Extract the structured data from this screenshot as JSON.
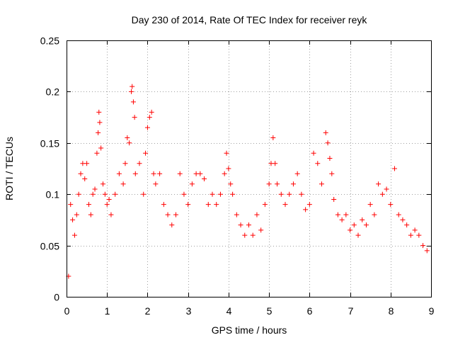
{
  "chart_data": {
    "type": "scatter",
    "title": "Day 230 of 2014, Rate Of TEC Index for receiver reyk",
    "xlabel": "GPS time / hours",
    "ylabel": "ROTI / TECUs",
    "xlim": [
      0,
      9
    ],
    "ylim": [
      0,
      0.25
    ],
    "x_ticks": [
      0,
      1,
      2,
      3,
      4,
      5,
      6,
      7,
      8,
      9
    ],
    "x_tick_labels": [
      "0",
      "1",
      "2",
      "3",
      "4",
      "5",
      "6",
      "7",
      "8",
      "9"
    ],
    "y_ticks": [
      0,
      0.05,
      0.1,
      0.15,
      0.2,
      0.25
    ],
    "y_tick_labels": [
      "0",
      "0.05",
      "0.1",
      "0.15",
      "0.2",
      "0.25"
    ],
    "grid": true,
    "marker": "+",
    "color": "#ff0000",
    "series": [
      {
        "name": "ROTI",
        "points": [
          [
            0.05,
            0.02
          ],
          [
            0.1,
            0.09
          ],
          [
            0.15,
            0.075
          ],
          [
            0.2,
            0.06
          ],
          [
            0.25,
            0.08
          ],
          [
            0.3,
            0.1
          ],
          [
            0.35,
            0.12
          ],
          [
            0.4,
            0.13
          ],
          [
            0.45,
            0.115
          ],
          [
            0.5,
            0.13
          ],
          [
            0.55,
            0.09
          ],
          [
            0.6,
            0.08
          ],
          [
            0.65,
            0.1
          ],
          [
            0.7,
            0.105
          ],
          [
            0.75,
            0.14
          ],
          [
            0.78,
            0.16
          ],
          [
            0.8,
            0.18
          ],
          [
            0.82,
            0.17
          ],
          [
            0.85,
            0.145
          ],
          [
            0.9,
            0.11
          ],
          [
            0.95,
            0.1
          ],
          [
            1.0,
            0.09
          ],
          [
            1.05,
            0.095
          ],
          [
            1.1,
            0.08
          ],
          [
            1.2,
            0.1
          ],
          [
            1.3,
            0.12
          ],
          [
            1.4,
            0.11
          ],
          [
            1.45,
            0.13
          ],
          [
            1.5,
            0.155
          ],
          [
            1.55,
            0.15
          ],
          [
            1.6,
            0.2
          ],
          [
            1.62,
            0.205
          ],
          [
            1.65,
            0.19
          ],
          [
            1.68,
            0.175
          ],
          [
            1.7,
            0.12
          ],
          [
            1.8,
            0.13
          ],
          [
            1.9,
            0.1
          ],
          [
            1.95,
            0.14
          ],
          [
            2.0,
            0.165
          ],
          [
            2.05,
            0.175
          ],
          [
            2.1,
            0.18
          ],
          [
            2.15,
            0.12
          ],
          [
            2.2,
            0.11
          ],
          [
            2.3,
            0.12
          ],
          [
            2.4,
            0.09
          ],
          [
            2.5,
            0.08
          ],
          [
            2.6,
            0.07
          ],
          [
            2.7,
            0.08
          ],
          [
            2.8,
            0.12
          ],
          [
            2.9,
            0.1
          ],
          [
            3.0,
            0.09
          ],
          [
            3.1,
            0.11
          ],
          [
            3.2,
            0.12
          ],
          [
            3.3,
            0.12
          ],
          [
            3.4,
            0.115
          ],
          [
            3.5,
            0.09
          ],
          [
            3.6,
            0.1
          ],
          [
            3.7,
            0.09
          ],
          [
            3.8,
            0.1
          ],
          [
            3.9,
            0.12
          ],
          [
            3.95,
            0.14
          ],
          [
            4.0,
            0.125
          ],
          [
            4.05,
            0.11
          ],
          [
            4.1,
            0.1
          ],
          [
            4.2,
            0.08
          ],
          [
            4.3,
            0.07
          ],
          [
            4.4,
            0.06
          ],
          [
            4.5,
            0.07
          ],
          [
            4.6,
            0.06
          ],
          [
            4.7,
            0.08
          ],
          [
            4.8,
            0.065
          ],
          [
            4.9,
            0.09
          ],
          [
            5.0,
            0.11
          ],
          [
            5.05,
            0.13
          ],
          [
            5.1,
            0.155
          ],
          [
            5.15,
            0.13
          ],
          [
            5.2,
            0.11
          ],
          [
            5.3,
            0.1
          ],
          [
            5.4,
            0.09
          ],
          [
            5.5,
            0.1
          ],
          [
            5.6,
            0.11
          ],
          [
            5.7,
            0.12
          ],
          [
            5.8,
            0.1
          ],
          [
            5.9,
            0.085
          ],
          [
            6.0,
            0.09
          ],
          [
            6.1,
            0.14
          ],
          [
            6.2,
            0.13
          ],
          [
            6.3,
            0.11
          ],
          [
            6.4,
            0.16
          ],
          [
            6.45,
            0.15
          ],
          [
            6.5,
            0.135
          ],
          [
            6.55,
            0.12
          ],
          [
            6.6,
            0.095
          ],
          [
            6.7,
            0.08
          ],
          [
            6.8,
            0.075
          ],
          [
            6.9,
            0.08
          ],
          [
            7.0,
            0.065
          ],
          [
            7.1,
            0.07
          ],
          [
            7.2,
            0.06
          ],
          [
            7.3,
            0.075
          ],
          [
            7.4,
            0.07
          ],
          [
            7.5,
            0.09
          ],
          [
            7.6,
            0.08
          ],
          [
            7.7,
            0.11
          ],
          [
            7.8,
            0.1
          ],
          [
            7.9,
            0.105
          ],
          [
            8.0,
            0.09
          ],
          [
            8.1,
            0.125
          ],
          [
            8.2,
            0.08
          ],
          [
            8.3,
            0.075
          ],
          [
            8.4,
            0.07
          ],
          [
            8.5,
            0.06
          ],
          [
            8.6,
            0.065
          ],
          [
            8.7,
            0.06
          ],
          [
            8.8,
            0.05
          ],
          [
            8.9,
            0.045
          ]
        ]
      }
    ]
  }
}
